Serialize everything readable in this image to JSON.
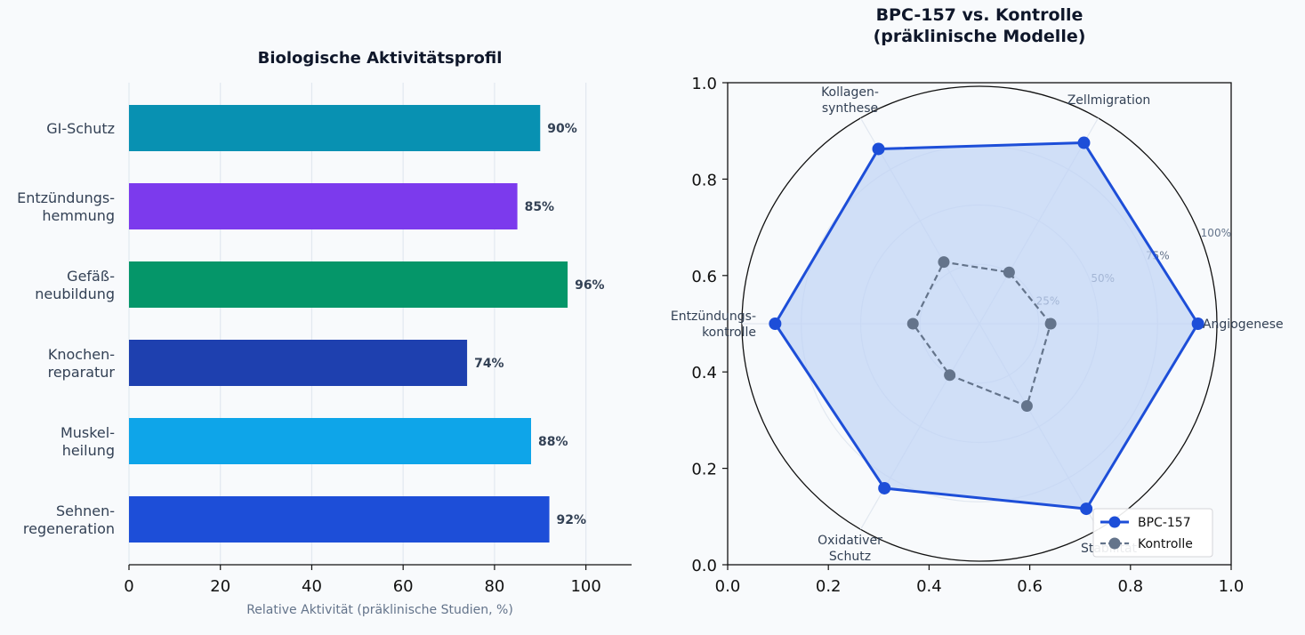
{
  "chart_data": [
    {
      "type": "bar",
      "orientation": "horizontal",
      "title": "Biologische Aktivitätsprofil",
      "xlabel": "Relative Aktivität (präklinische Studien, %)",
      "ylabel": "",
      "xlim": [
        0,
        110
      ],
      "xticks": [
        "0",
        "20",
        "40",
        "60",
        "80",
        "100"
      ],
      "grid": "vertical",
      "categories": [
        [
          "GI-Schutz"
        ],
        [
          "Entzündungs-",
          "hemmung"
        ],
        [
          "Gefäß-",
          "neubildung"
        ],
        [
          "Knochen-",
          "reparatur"
        ],
        [
          "Muskel-",
          "heilung"
        ],
        [
          "Sehnen-",
          "regeneration"
        ]
      ],
      "values": [
        90,
        85,
        96,
        74,
        88,
        92
      ],
      "value_labels": [
        "90%",
        "85%",
        "96%",
        "74%",
        "88%",
        "92%"
      ],
      "colors": [
        "#0891b2",
        "#7c3aed",
        "#059669",
        "#1e40af",
        "#0ea5e9",
        "#1d4ed8"
      ]
    },
    {
      "type": "radar",
      "title": [
        "BPC-157 vs. Kontrolle",
        "(präklinische Modelle)"
      ],
      "axes": [
        [
          "Angiogenese"
        ],
        [
          "Zellmigration"
        ],
        [
          "Kollagen-",
          "synthese"
        ],
        [
          "Entzündungs-",
          "kontrolle"
        ],
        [
          "Oxidativer",
          "Schutz"
        ],
        [
          "Stabilität"
        ]
      ],
      "radial_ticks": [
        "25%",
        "50%",
        "75%",
        "100%"
      ],
      "radial_tick_values": [
        0.25,
        0.5,
        0.75,
        1.0
      ],
      "frame_ticks": [
        "0.0",
        "0.2",
        "0.4",
        "0.6",
        "0.8",
        "1.0"
      ],
      "frame_range": [
        0,
        1
      ],
      "legend_position": "lower-right",
      "series": [
        {
          "name": "BPC-157",
          "values": [
            0.92,
            0.88,
            0.85,
            0.86,
            0.8,
            0.9
          ],
          "color": "#1d4ed8",
          "fill": "#bfd3f5",
          "linestyle": "solid"
        },
        {
          "name": "Kontrolle",
          "values": [
            0.3,
            0.25,
            0.3,
            0.28,
            0.25,
            0.4
          ],
          "color": "#64748b",
          "linestyle": "dashed"
        }
      ]
    }
  ]
}
